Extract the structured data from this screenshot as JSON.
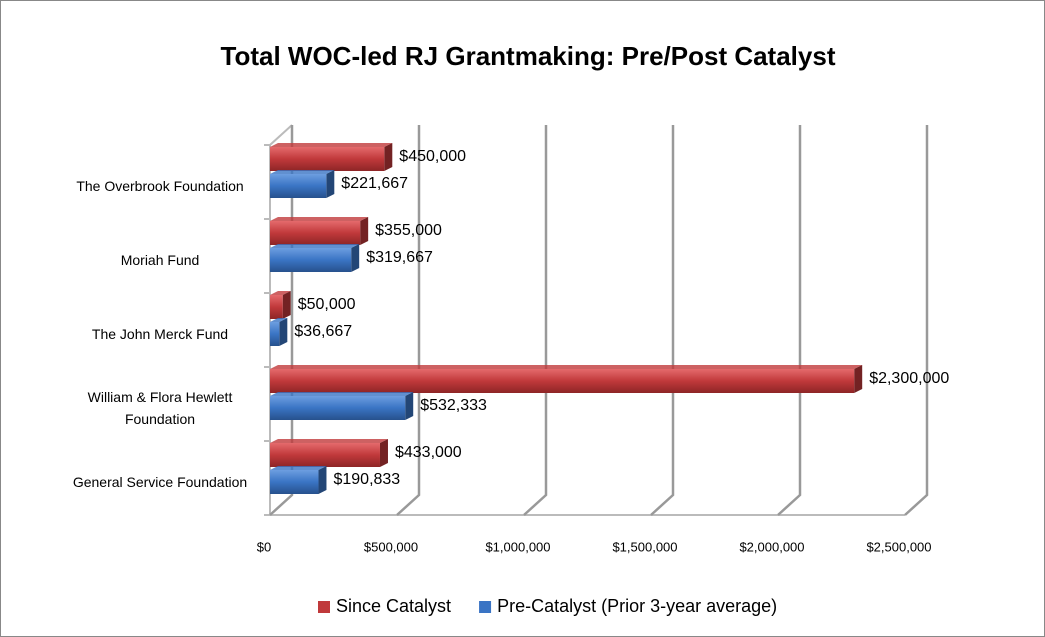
{
  "chart_data": {
    "type": "hbar",
    "title": "Total WOC-led RJ Grantmaking: Pre/Post Catalyst",
    "categories": [
      "The Overbrook Foundation",
      "Moriah Fund",
      "The John Merck Fund",
      "William & Flora Hewlett Foundation",
      "General Service Foundation"
    ],
    "series": [
      {
        "name": "Since Catalyst",
        "color": "#c0393b",
        "values": [
          450000,
          355000,
          50000,
          2300000,
          433000
        ],
        "value_labels": [
          "$450,000",
          "$355,000",
          "$50,000",
          "$2,300,000",
          "$433,000"
        ]
      },
      {
        "name": "Pre-Catalyst (Prior 3-year average)",
        "color": "#3a74c4",
        "values": [
          221667,
          319667,
          36667,
          532333,
          190833
        ],
        "value_labels": [
          "$221,667",
          "$319,667",
          "$36,667",
          "$532,333",
          "$190,833"
        ]
      }
    ],
    "xlim": [
      0,
      2500000
    ],
    "xticks": [
      {
        "value": 0,
        "label": "$0"
      },
      {
        "value": 500000,
        "label": "$500,000"
      },
      {
        "value": 1000000,
        "label": "$1,000,000"
      },
      {
        "value": 1500000,
        "label": "$1,500,000"
      },
      {
        "value": 2000000,
        "label": "$2,000,000"
      },
      {
        "value": 2500000,
        "label": "$2,500,000"
      }
    ],
    "grid": true,
    "legend": "bottom"
  }
}
